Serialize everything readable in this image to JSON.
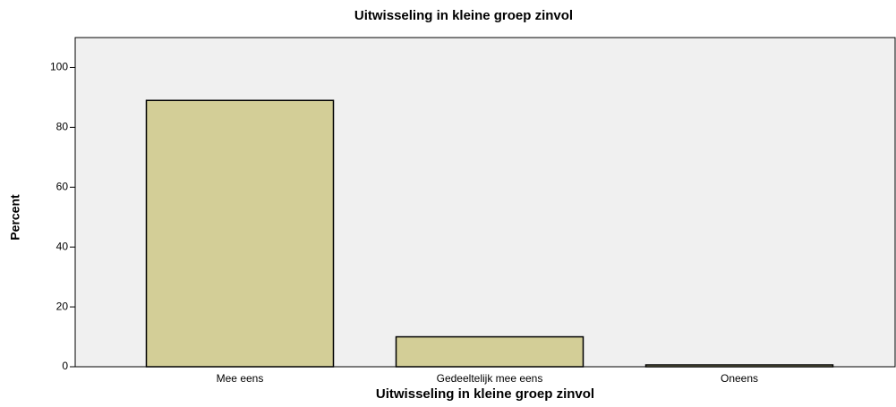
{
  "chart_data": {
    "type": "bar",
    "title": "Uitwisseling in kleine groep zinvol",
    "x_label": "Uitwisseling in kleine groep zinvol",
    "y_label": "Percent",
    "categories": [
      "Mee eens",
      "Gedeeltelijk mee eens",
      "Oneens"
    ],
    "values": [
      89,
      10,
      0.6
    ],
    "color": "#d3ce97",
    "ylim": [
      0,
      110
    ],
    "yticks": [
      0,
      20,
      40,
      60,
      80,
      100
    ],
    "grid": false
  }
}
